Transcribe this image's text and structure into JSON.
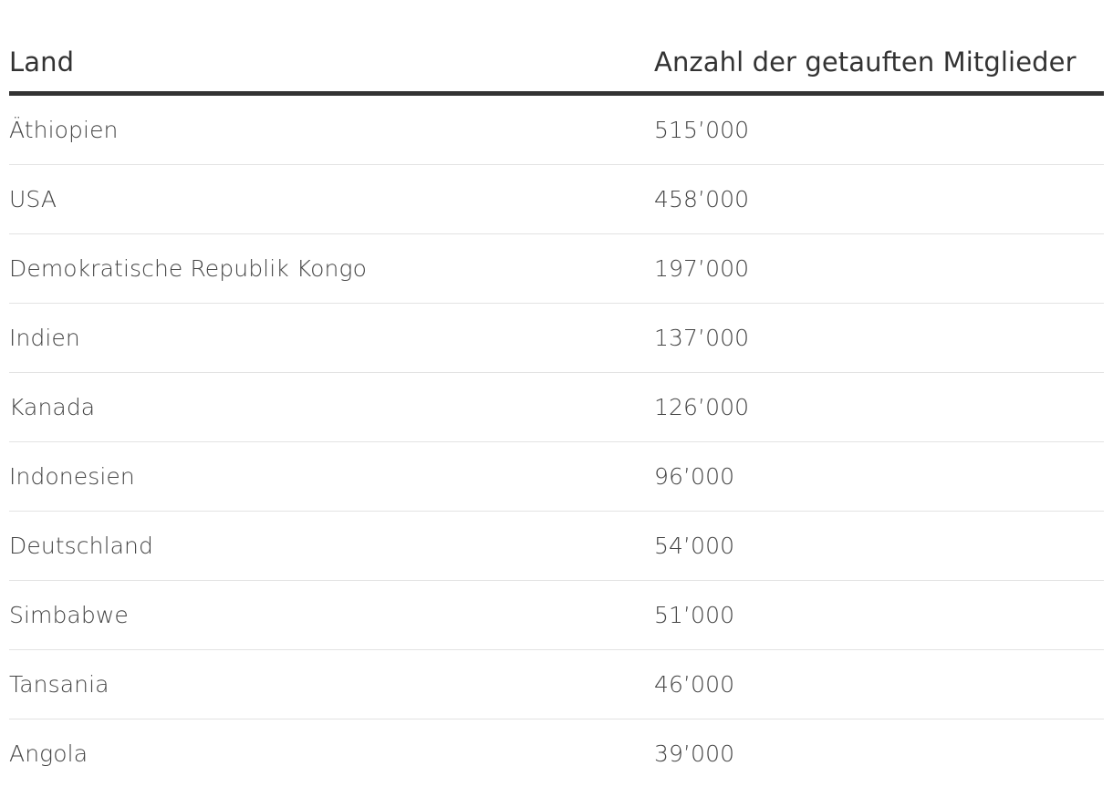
{
  "table": {
    "headers": [
      "Land",
      "Anzahl der getauften Mitglieder"
    ],
    "rows": [
      [
        "Äthiopien",
        "515’000"
      ],
      [
        "USA",
        "458’000"
      ],
      [
        "Demokratische Republik Kongo",
        "197’000"
      ],
      [
        "Indien",
        "137’000"
      ],
      [
        "Kanada",
        "126’000"
      ],
      [
        "Indonesien",
        "96’000"
      ],
      [
        "Deutschland",
        "54’000"
      ],
      [
        "Simbabwe",
        "51’000"
      ],
      [
        "Tansania",
        "46’000"
      ],
      [
        "Angola",
        "39’000"
      ]
    ]
  }
}
